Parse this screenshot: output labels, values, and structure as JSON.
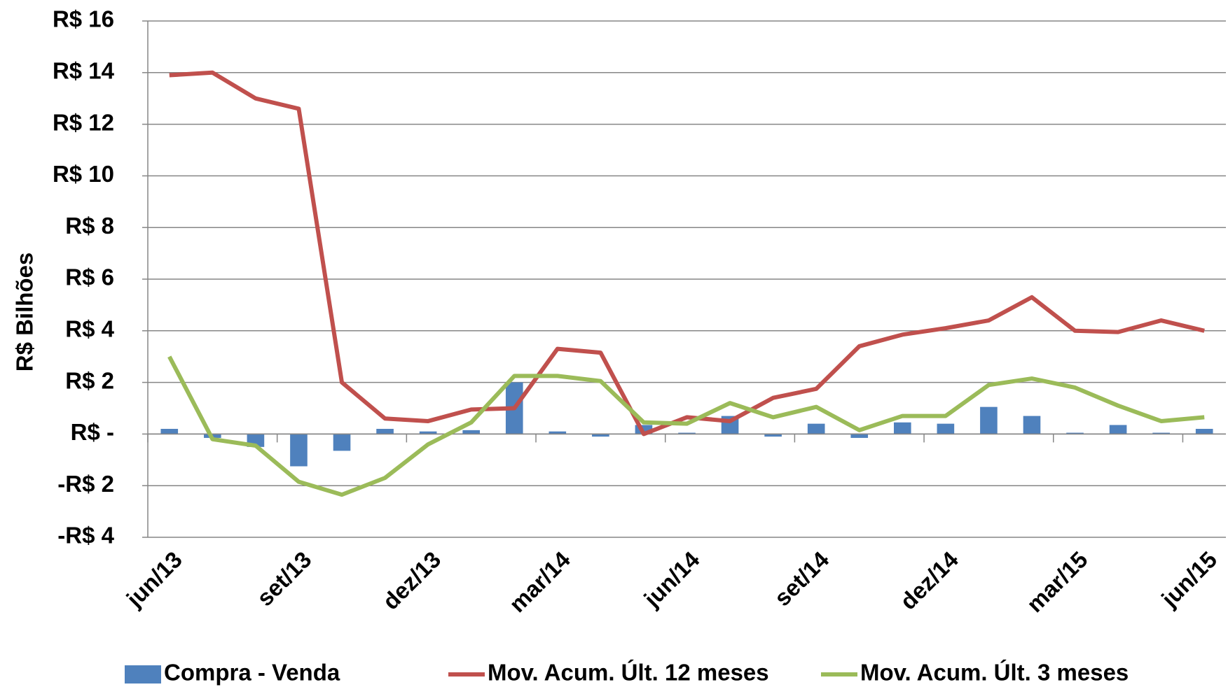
{
  "chart_data": {
    "type": "bar-line",
    "y_axis_label": "R$ Bilhões",
    "categories": [
      "jun/13",
      null,
      null,
      "set/13",
      null,
      null,
      "dez/13",
      null,
      null,
      "mar/14",
      null,
      null,
      "jun/14",
      null,
      null,
      "set/14",
      null,
      null,
      "dez/14",
      null,
      null,
      "mar/15",
      null,
      null,
      "jun/15"
    ],
    "series": [
      {
        "name": "Compra - Venda",
        "type": "bar",
        "color": "#4f81bd",
        "values": [
          0.2,
          -0.15,
          -0.5,
          -1.25,
          -0.65,
          0.2,
          0.1,
          0.15,
          2.0,
          0.1,
          -0.1,
          0.35,
          0.05,
          0.7,
          -0.1,
          0.4,
          -0.15,
          0.45,
          0.4,
          1.05,
          0.7,
          0.05,
          0.35,
          0.05,
          0.2
        ]
      },
      {
        "name": "Mov. Acum. Últ. 12 meses",
        "type": "line",
        "color": "#c0504d",
        "values": [
          13.9,
          14.0,
          13.0,
          12.6,
          2.0,
          0.6,
          0.5,
          0.95,
          1.0,
          3.3,
          3.15,
          0.0,
          0.65,
          0.5,
          1.4,
          1.75,
          3.4,
          3.85,
          4.1,
          4.4,
          5.3,
          4.0,
          3.95,
          4.4,
          4.0
        ]
      },
      {
        "name": "Mov. Acum. Últ. 3 meses",
        "type": "line",
        "color": "#9bbb59",
        "values": [
          3.0,
          -0.2,
          -0.45,
          -1.85,
          -2.35,
          -1.7,
          -0.4,
          0.45,
          2.25,
          2.25,
          2.05,
          0.45,
          0.4,
          1.2,
          0.65,
          1.05,
          0.15,
          0.7,
          0.7,
          1.9,
          2.15,
          1.8,
          1.1,
          0.5,
          0.65
        ]
      }
    ],
    "ylim": [
      -4,
      16
    ],
    "yticks": [
      {
        "value": -4,
        "label": "-R$ 4"
      },
      {
        "value": -2,
        "label": "-R$ 2"
      },
      {
        "value": 0,
        "label": "R$ -"
      },
      {
        "value": 2,
        "label": "R$ 2"
      },
      {
        "value": 4,
        "label": "R$ 4"
      },
      {
        "value": 6,
        "label": "R$ 6"
      },
      {
        "value": 8,
        "label": "R$ 8"
      },
      {
        "value": 10,
        "label": "R$ 10"
      },
      {
        "value": 12,
        "label": "R$ 12"
      },
      {
        "value": 14,
        "label": "R$ 14"
      },
      {
        "value": 16,
        "label": "R$ 16"
      }
    ],
    "grid": true,
    "legend": "bottom"
  }
}
